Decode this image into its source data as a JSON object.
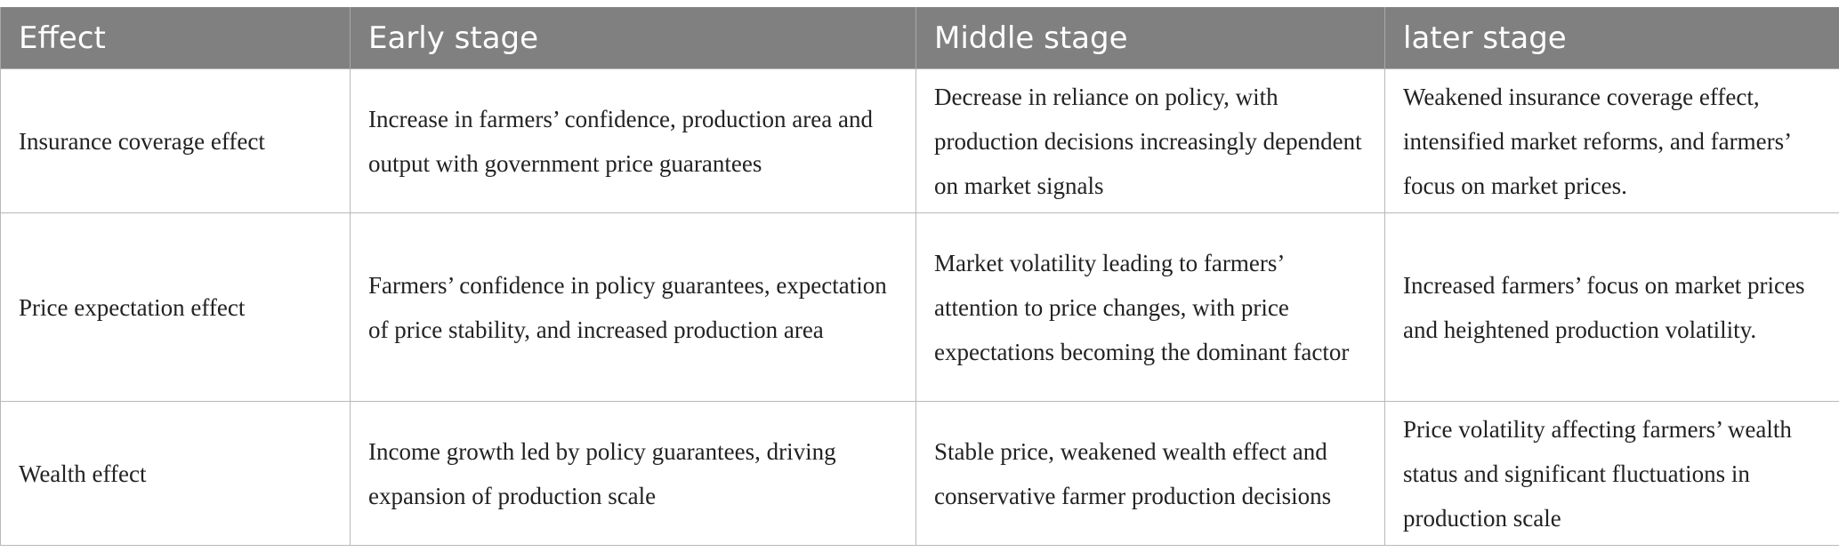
{
  "table": {
    "headers": [
      "Effect",
      "Early stage",
      "Middle stage",
      "later stage"
    ],
    "rows": [
      {
        "effect": "Insurance coverage effect",
        "early": "Increase in farmers’ confidence, production area and output with government price guarantees",
        "middle": "Decrease in reliance on policy, with production decisions increasingly dependent on market signals",
        "later": "Weakened insurance coverage effect, intensified market reforms, and farmers’ focus on market prices."
      },
      {
        "effect": "Price expectation effect",
        "early": "Farmers’ confidence in policy guarantees, expectation of price stability, and increased production area",
        "middle": "Market volatility leading to farmers’ attention to price changes, with price expectations becoming the dominant factor",
        "later": "Increased farmers’ focus on market prices and heightened production volatility."
      },
      {
        "effect": "Wealth effect",
        "early": "Income growth led by policy guarantees, driving expansion of production scale",
        "middle": "Stable price, weakened wealth effect and conservative farmer production decisions",
        "later": "Price volatility affecting farmers’ wealth status and significant fluctuations in production scale"
      }
    ]
  }
}
